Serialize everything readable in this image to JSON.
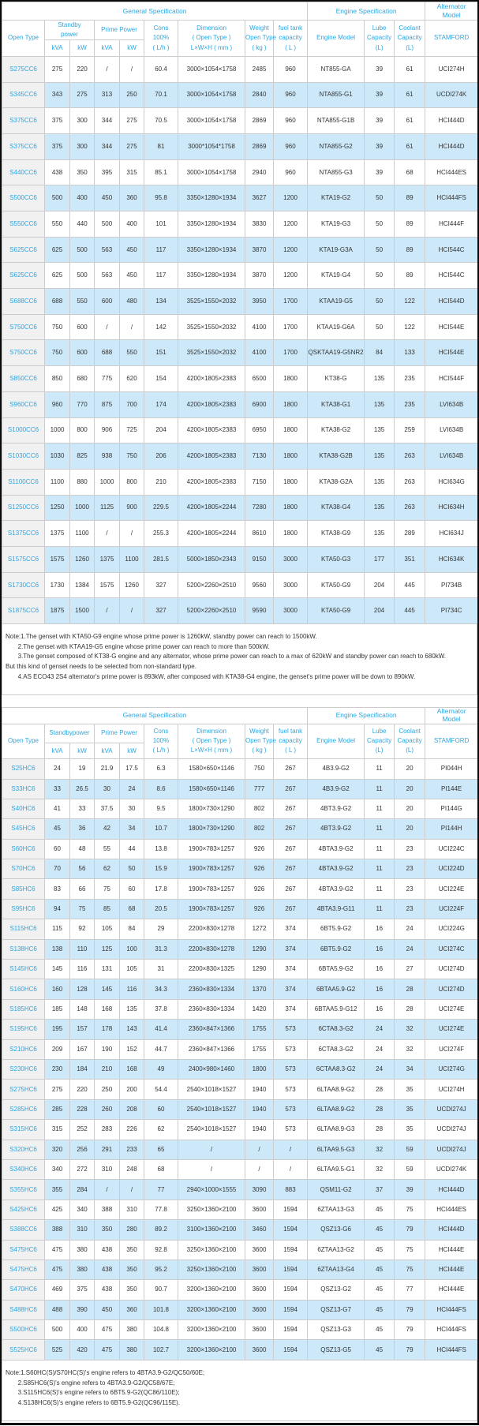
{
  "page": {
    "accent_color": "#2aa7e3",
    "row_stripe_color": "#cde9f9",
    "first_column_color": "#f1f1f1",
    "grid_color": "#cccccc",
    "frame_color": "#0a0a0a"
  },
  "tables": [
    {
      "id": "cc6-series",
      "group_header": [
        "General Specification",
        "Engine Specification",
        "Alternator\nModel"
      ],
      "header": {
        "open_type": "Open Type",
        "standby": "Standby\npower",
        "prime": "Prime Power",
        "units": [
          "kVA",
          "kW",
          "kVA",
          "kW"
        ],
        "cons": "Cons\n100%\n( L/h )",
        "dimension": "Dimension\n( Open Type )\nL×W×H ( mm )",
        "weight": "Weight\nOpen Type\n( kg )",
        "fuel": "fuel tank\ncapacity\n( L )",
        "engine": "Engine Model",
        "lube": "Lube\nCapacity\n(L)",
        "coolant": "Coolant\nCapacity\n(L)",
        "alternator": "STAMFORD"
      },
      "rows": [
        [
          "S275CC6",
          "275",
          "220",
          "/",
          "/",
          "60.4",
          "3000×1054×1758",
          "2485",
          "960",
          "NT855-GA",
          "39",
          "61",
          "UCI274H"
        ],
        [
          "S345CC6",
          "343",
          "275",
          "313",
          "250",
          "70.1",
          "3000×1054×1758",
          "2840",
          "960",
          "NTA855-G1",
          "39",
          "61",
          "UCDI274K"
        ],
        [
          "S375CC6",
          "375",
          "300",
          "344",
          "275",
          "70.5",
          "3000×1054×1758",
          "2869",
          "960",
          "NTA855-G1B",
          "39",
          "61",
          "HCI444D"
        ],
        [
          "S375CC6",
          "375",
          "300",
          "344",
          "275",
          "81",
          "3000*1054*1758",
          "2869",
          "960",
          "NTA855-G2",
          "39",
          "61",
          "HCI444D"
        ],
        [
          "S440CC6",
          "438",
          "350",
          "395",
          "315",
          "85.1",
          "3000×1054×1758",
          "2940",
          "960",
          "NTA855-G3",
          "39",
          "68",
          "HCI444ES"
        ],
        [
          "S500CC6",
          "500",
          "400",
          "450",
          "360",
          "95.8",
          "3350×1280×1934",
          "3627",
          "1200",
          "KTA19-G2",
          "50",
          "89",
          "HCI444FS"
        ],
        [
          "S550CC6",
          "550",
          "440",
          "500",
          "400",
          "101",
          "3350×1280×1934",
          "3830",
          "1200",
          "KTA19-G3",
          "50",
          "89",
          "HCI444F"
        ],
        [
          "S625CC6",
          "625",
          "500",
          "563",
          "450",
          "117",
          "3350×1280×1934",
          "3870",
          "1200",
          "KTA19-G3A",
          "50",
          "89",
          "HCI544C"
        ],
        [
          "S625CC6",
          "625",
          "500",
          "563",
          "450",
          "117",
          "3350×1280×1934",
          "3870",
          "1200",
          "KTA19-G4",
          "50",
          "89",
          "HCI544C"
        ],
        [
          "S688CC6",
          "688",
          "550",
          "600",
          "480",
          "134",
          "3525×1550×2032",
          "3950",
          "1700",
          "KTAA19-G5",
          "50",
          "122",
          "HCI544D"
        ],
        [
          "S750CC6",
          "750",
          "600",
          "/",
          "/",
          "142",
          "3525×1550×2032",
          "4100",
          "1700",
          "KTAA19-G6A",
          "50",
          "122",
          "HCI544E"
        ],
        [
          "S750CC6",
          "750",
          "600",
          "688",
          "550",
          "151",
          "3525×1550×2032",
          "4100",
          "1700",
          "QSKTAA19-G5NR2",
          "84",
          "133",
          "HCI544E"
        ],
        [
          "S850CC6",
          "850",
          "680",
          "775",
          "620",
          "154",
          "4200×1805×2383",
          "6500",
          "1800",
          "KT38-G",
          "135",
          "235",
          "HCI544F"
        ],
        [
          "S960CC6",
          "960",
          "770",
          "875",
          "700",
          "174",
          "4200×1805×2383",
          "6900",
          "1800",
          "KTA38-G1",
          "135",
          "235",
          "LVI634B"
        ],
        [
          "S1000CC6",
          "1000",
          "800",
          "906",
          "725",
          "204",
          "4200×1805×2383",
          "6950",
          "1800",
          "KTA38-G2",
          "135",
          "259",
          "LVI634B"
        ],
        [
          "S1030CC6",
          "1030",
          "825",
          "938",
          "750",
          "206",
          "4200×1805×2383",
          "7130",
          "1800",
          "KTA38-G2B",
          "135",
          "263",
          "LVI634B"
        ],
        [
          "S1100CC6",
          "1100",
          "880",
          "1000",
          "800",
          "210",
          "4200×1805×2383",
          "7150",
          "1800",
          "KTA38-G2A",
          "135",
          "263",
          "HCI634G"
        ],
        [
          "S1250CC6",
          "1250",
          "1000",
          "1125",
          "900",
          "229.5",
          "4200×1805×2244",
          "7280",
          "1800",
          "KTA38-G4",
          "135",
          "263",
          "HCI634H"
        ],
        [
          "S1375CC6",
          "1375",
          "1100",
          "/",
          "/",
          "255.3",
          "4200×1805×2244",
          "8610",
          "1800",
          "KTA38-G9",
          "135",
          "289",
          "HCI634J"
        ],
        [
          "S1575CC6",
          "1575",
          "1260",
          "1375",
          "1100",
          "281.5",
          "5000×1850×2343",
          "9150",
          "3000",
          "KTA50-G3",
          "177",
          "351",
          "HCI634K"
        ],
        [
          "S1730CC6",
          "1730",
          "1384",
          "1575",
          "1260",
          "327",
          "5200×2260×2510",
          "9560",
          "3000",
          "KTA50-G9",
          "204",
          "445",
          "PI734B"
        ],
        [
          "S1875CC6",
          "1875",
          "1500",
          "/",
          "/",
          "327",
          "5200×2260×2510",
          "9590",
          "3000",
          "KTA50-G9",
          "204",
          "445",
          "PI734C"
        ]
      ],
      "notes": [
        "Note:1.The genset with KTA50-G9 engine whose prime power is 1260kW, standby power can reach to 1500kW.",
        "       2.The genset with KTAA19-G5 engine whose prime power can reach to more than 500kW.",
        "       3.The genset composed of KT38-G engine and any alternator, whose prime power can reach to a max of 620kW and standby power can reach to 680kW.",
        "But this kind of genset needs to be selected from non-standard type.",
        "       4.AS ECO43 2S4 alternator's prime power is 893kW, after composed with KTA38-G4 engine, the genset's prime power will be down to 890kW."
      ]
    },
    {
      "id": "hc6-series",
      "group_header": [
        "General Specification",
        "Engine Specification",
        "Alternator\nModel"
      ],
      "header": {
        "open_type": "Open Type",
        "standby": "Standbypower",
        "prime": "Prime Power",
        "units": [
          "kVA",
          "kW",
          "kVA",
          "kW"
        ],
        "cons": "Cons\n100%\n( L/h )",
        "dimension": "Dimension\n( Open Type )\nL×W×H ( mm )",
        "weight": "Weight\nOpen Type\n( kg )",
        "fuel": "fuel tank\ncapacity\n( L )",
        "engine": "Engine Model",
        "lube": "Lube\nCapacity\n(L)",
        "coolant": "Coolant\nCapacity\n(L)",
        "alternator": "STAMFORD"
      },
      "rows": [
        [
          "S25HC6",
          "24",
          "19",
          "21.9",
          "17.5",
          "6.3",
          "1580×650×1146",
          "750",
          "267",
          "4B3.9-G2",
          "11",
          "20",
          "PI044H"
        ],
        [
          "S33HC6",
          "33",
          "26.5",
          "30",
          "24",
          "8.6",
          "1580×650×1146",
          "777",
          "267",
          "4B3.9-G2",
          "11",
          "20",
          "PI144E"
        ],
        [
          "S40HC6",
          "41",
          "33",
          "37.5",
          "30",
          "9.5",
          "1800×730×1290",
          "802",
          "267",
          "4BT3.9-G2",
          "11",
          "20",
          "PI144G"
        ],
        [
          "S45HC6",
          "45",
          "36",
          "42",
          "34",
          "10.7",
          "1800×730×1290",
          "802",
          "267",
          "4BT3.9-G2",
          "11",
          "20",
          "PI144H"
        ],
        [
          "S60HC6",
          "60",
          "48",
          "55",
          "44",
          "13.8",
          "1900×783×1257",
          "926",
          "267",
          "4BTA3.9-G2",
          "11",
          "23",
          "UCI224C"
        ],
        [
          "S70HC6",
          "70",
          "56",
          "62",
          "50",
          "15.9",
          "1900×783×1257",
          "926",
          "267",
          "4BTA3.9-G2",
          "11",
          "23",
          "UCI224D"
        ],
        [
          "S85HC6",
          "83",
          "66",
          "75",
          "60",
          "17.8",
          "1900×783×1257",
          "926",
          "267",
          "4BTA3.9-G2",
          "11",
          "23",
          "UCI224E"
        ],
        [
          "S95HC6",
          "94",
          "75",
          "85",
          "68",
          "20.5",
          "1900×783×1257",
          "926",
          "267",
          "4BTA3.9-G11",
          "11",
          "23",
          "UCI224F"
        ],
        [
          "S115HC6",
          "115",
          "92",
          "105",
          "84",
          "29",
          "2200×830×1278",
          "1272",
          "374",
          "6BT5.9-G2",
          "16",
          "24",
          "UCI224G"
        ],
        [
          "S138HC6",
          "138",
          "110",
          "125",
          "100",
          "31.3",
          "2200×830×1278",
          "1290",
          "374",
          "6BT5.9-G2",
          "16",
          "24",
          "UCI274C"
        ],
        [
          "S145HC6",
          "145",
          "116",
          "131",
          "105",
          "31",
          "2200×830×1325",
          "1290",
          "374",
          "6BTA5.9-G2",
          "16",
          "27",
          "UCI274D"
        ],
        [
          "S160HC6",
          "160",
          "128",
          "145",
          "116",
          "34.3",
          "2360×830×1334",
          "1370",
          "374",
          "6BTAA5.9-G2",
          "16",
          "28",
          "UCI274D"
        ],
        [
          "S185HC6",
          "185",
          "148",
          "168",
          "135",
          "37.8",
          "2360×830×1334",
          "1420",
          "374",
          "6BTAA5.9-G12",
          "16",
          "28",
          "UCI274E"
        ],
        [
          "S195HC6",
          "195",
          "157",
          "178",
          "143",
          "41.4",
          "2360×847×1366",
          "1755",
          "573",
          "6CTA8.3-G2",
          "24",
          "32",
          "UCI274E"
        ],
        [
          "S210HC6",
          "209",
          "167",
          "190",
          "152",
          "44.7",
          "2360×847×1366",
          "1755",
          "573",
          "6CTA8.3-G2",
          "24",
          "32",
          "UCI274F"
        ],
        [
          "S230HC6",
          "230",
          "184",
          "210",
          "168",
          "49",
          "2400×980×1460",
          "1800",
          "573",
          "6CTAA8.3-G2",
          "24",
          "34",
          "UCI274G"
        ],
        [
          "S275HC6",
          "275",
          "220",
          "250",
          "200",
          "54.4",
          "2540×1018×1527",
          "1940",
          "573",
          "6LTAA8.9-G2",
          "28",
          "35",
          "UCI274H"
        ],
        [
          "S285HC6",
          "285",
          "228",
          "260",
          "208",
          "60",
          "2540×1018×1527",
          "1940",
          "573",
          "6LTAA8.9-G2",
          "28",
          "35",
          "UCDI274J"
        ],
        [
          "S315HC6",
          "315",
          "252",
          "283",
          "226",
          "62",
          "2540×1018×1527",
          "1940",
          "573",
          "6LTAA8.9-G3",
          "28",
          "35",
          "UCDI274J"
        ],
        [
          "S320HC6",
          "320",
          "256",
          "291",
          "233",
          "65",
          "/",
          "/",
          "/",
          "6LTAA9.5-G3",
          "32",
          "59",
          "UCDI274J"
        ],
        [
          "S340HC6",
          "340",
          "272",
          "310",
          "248",
          "68",
          "/",
          "/",
          "/",
          "6LTAA9.5-G1",
          "32",
          "59",
          "UCDI274K"
        ],
        [
          "S355HC6",
          "355",
          "284",
          "/",
          "/",
          "77",
          "2940×1000×1555",
          "3090",
          "883",
          "QSM11-G2",
          "37",
          "39",
          "HCI444D"
        ],
        [
          "S425HC6",
          "425",
          "340",
          "388",
          "310",
          "77.8",
          "3250×1360×2100",
          "3600",
          "1594",
          "6ZTAA13-G3",
          "45",
          "75",
          "HCI444ES"
        ],
        [
          "S388CC6",
          "388",
          "310",
          "350",
          "280",
          "89.2",
          "3100×1360×2100",
          "3460",
          "1594",
          "QSZ13-G6",
          "45",
          "79",
          "HCI444D"
        ],
        [
          "S475HC6",
          "475",
          "380",
          "438",
          "350",
          "92.8",
          "3250×1360×2100",
          "3600",
          "1594",
          "6ZTAA13-G2",
          "45",
          "75",
          "HCI444E"
        ],
        [
          "S475HC6",
          "475",
          "380",
          "438",
          "350",
          "95.2",
          "3250×1360×2100",
          "3600",
          "1594",
          "6ZTAA13-G4",
          "45",
          "75",
          "HCI444E"
        ],
        [
          "S470HC6",
          "469",
          "375",
          "438",
          "350",
          "90.7",
          "3200×1360×2100",
          "3600",
          "1594",
          "QSZ13-G2",
          "45",
          "77",
          "HCI444E"
        ],
        [
          "S488HC6",
          "488",
          "390",
          "450",
          "360",
          "101.8",
          "3200×1360×2100",
          "3600",
          "1594",
          "QSZ13-G7",
          "45",
          "79",
          "HCI444FS"
        ],
        [
          "S500HC6",
          "500",
          "400",
          "475",
          "380",
          "104.8",
          "3200×1360×2100",
          "3600",
          "1594",
          "QSZ13-G3",
          "45",
          "79",
          "HCI444FS"
        ],
        [
          "S525HC6",
          "525",
          "420",
          "475",
          "380",
          "102.7",
          "3200×1360×2100",
          "3600",
          "1594",
          "QSZ13-G5",
          "45",
          "79",
          "HCI444FS"
        ]
      ],
      "notes": [
        "Note:1.S60HC(S)/S70HC(S)'s engine refers to 4BTA3.9-G2/QC50/60E;",
        "       2.S85HC6(S)'s engine refers to 4BTA3.9-G2/QC58/67E;",
        "       3.S115HC6(S)'s engine refers to 6BT5.9-G2(QC86/110E);",
        "       4.S138HC6(S)'s engine refers to 6BT5.9-G2(QC96/115E)."
      ]
    }
  ]
}
